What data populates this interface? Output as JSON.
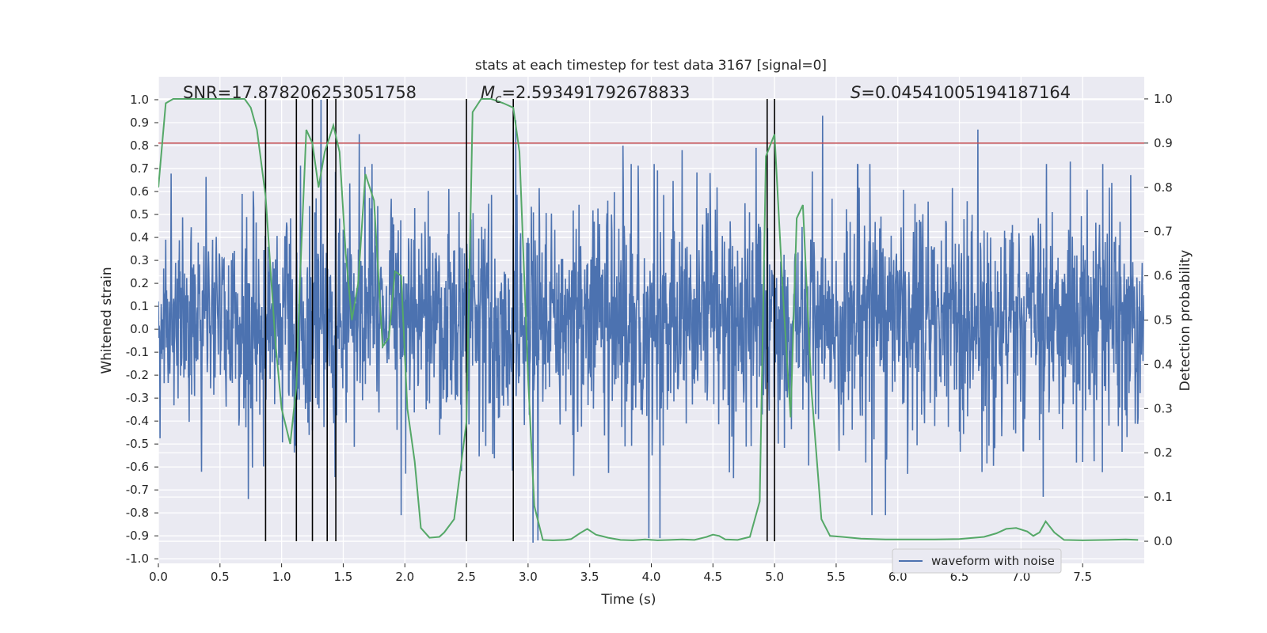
{
  "chart_data": {
    "type": "line",
    "title": "stats at each timestep for test data 3167 [signal=0]",
    "xlabel": "Time (s)",
    "ylabel": "Whitened strain",
    "ylabel_right": "Detection probability",
    "xlim": [
      0.0,
      8.0
    ],
    "ylim": [
      -1.02,
      1.1
    ],
    "ylim_right": [
      -0.05,
      1.05
    ],
    "x_ticks": [
      "0.0",
      "0.5",
      "1.0",
      "1.5",
      "2.0",
      "2.5",
      "3.0",
      "3.5",
      "4.0",
      "4.5",
      "5.0",
      "5.5",
      "6.0",
      "6.5",
      "7.0",
      "7.5"
    ],
    "y_ticks": [
      "-1.0",
      "-0.9",
      "-0.8",
      "-0.7",
      "-0.6",
      "-0.5",
      "-0.4",
      "-0.3",
      "-0.2",
      "-0.1",
      "0.0",
      "0.1",
      "0.2",
      "0.3",
      "0.4",
      "0.5",
      "0.6",
      "0.7",
      "0.8",
      "0.9",
      "1.0"
    ],
    "y_ticks_right": [
      "0.0",
      "0.1",
      "0.2",
      "0.3",
      "0.4",
      "0.5",
      "0.6",
      "0.7",
      "0.8",
      "0.9",
      "1.0"
    ],
    "grid": true,
    "legend": {
      "position": "lower-right",
      "entries": [
        "waveform with noise"
      ]
    },
    "annotations": {
      "snr": "SNR=17.878206253051758",
      "mc_symbol": "M",
      "mc_subscript": "c",
      "mc_value": "=2.593491792678833",
      "s_symbol": "S",
      "s_value": "=0.04541005194187164"
    },
    "series": [
      {
        "name": "waveform with noise",
        "color": "#4c72b0",
        "kind": "noisy-strain",
        "typical_range": [
          -0.35,
          0.45
        ],
        "peaks": [
          {
            "x": 0.73,
            "y": -0.74
          },
          {
            "x": 1.32,
            "y": 1.0
          },
          {
            "x": 1.63,
            "y": 0.85
          },
          {
            "x": 1.97,
            "y": -0.81
          },
          {
            "x": 2.9,
            "y": 0.91
          },
          {
            "x": 3.04,
            "y": -0.93
          },
          {
            "x": 3.08,
            "y": -0.92
          },
          {
            "x": 3.77,
            "y": 0.8
          },
          {
            "x": 3.98,
            "y": -0.91
          },
          {
            "x": 4.07,
            "y": -0.91
          },
          {
            "x": 4.25,
            "y": 0.78
          },
          {
            "x": 4.85,
            "y": 0.79
          },
          {
            "x": 5.39,
            "y": 0.93
          },
          {
            "x": 5.79,
            "y": -0.81
          },
          {
            "x": 5.9,
            "y": -0.81
          },
          {
            "x": 6.65,
            "y": 0.87
          },
          {
            "x": 7.18,
            "y": -0.73
          },
          {
            "x": 7.4,
            "y": 0.73
          }
        ]
      },
      {
        "name": "detection probability",
        "color": "#55a868",
        "axis": "right",
        "x": [
          0.0,
          0.06,
          0.12,
          0.25,
          0.4,
          0.55,
          0.7,
          0.75,
          0.8,
          0.87,
          0.95,
          1.0,
          1.07,
          1.12,
          1.15,
          1.2,
          1.25,
          1.3,
          1.35,
          1.42,
          1.47,
          1.52,
          1.57,
          1.62,
          1.68,
          1.75,
          1.82,
          1.87,
          1.92,
          1.97,
          2.02,
          2.08,
          2.13,
          2.2,
          2.28,
          2.32,
          2.4,
          2.5,
          2.55,
          2.62,
          2.7,
          2.8,
          2.88,
          2.93,
          3.0,
          3.05,
          3.12,
          3.2,
          3.3,
          3.35,
          3.42,
          3.48,
          3.55,
          3.65,
          3.75,
          3.85,
          3.95,
          4.05,
          4.15,
          4.25,
          4.35,
          4.45,
          4.5,
          4.55,
          4.6,
          4.7,
          4.8,
          4.88,
          4.93,
          5.0,
          5.07,
          5.13,
          5.18,
          5.23,
          5.3,
          5.38,
          5.45,
          5.55,
          5.7,
          5.9,
          6.1,
          6.3,
          6.5,
          6.7,
          6.8,
          6.88,
          6.96,
          7.05,
          7.1,
          7.15,
          7.2,
          7.27,
          7.35,
          7.5,
          7.7,
          7.85,
          7.95
        ],
        "values": [
          0.8,
          0.99,
          1.0,
          1.0,
          1.0,
          1.0,
          1.0,
          0.98,
          0.93,
          0.78,
          0.45,
          0.3,
          0.22,
          0.35,
          0.6,
          0.93,
          0.9,
          0.8,
          0.88,
          0.94,
          0.88,
          0.65,
          0.5,
          0.58,
          0.83,
          0.77,
          0.44,
          0.46,
          0.61,
          0.6,
          0.3,
          0.18,
          0.03,
          0.008,
          0.01,
          0.02,
          0.05,
          0.27,
          0.97,
          1.0,
          1.0,
          0.99,
          0.98,
          0.88,
          0.37,
          0.08,
          0.003,
          0.002,
          0.003,
          0.005,
          0.018,
          0.028,
          0.015,
          0.008,
          0.003,
          0.002,
          0.004,
          0.002,
          0.003,
          0.004,
          0.003,
          0.01,
          0.015,
          0.012,
          0.004,
          0.003,
          0.01,
          0.09,
          0.87,
          0.92,
          0.55,
          0.28,
          0.73,
          0.76,
          0.34,
          0.05,
          0.012,
          0.01,
          0.006,
          0.004,
          0.004,
          0.004,
          0.005,
          0.01,
          0.018,
          0.028,
          0.03,
          0.022,
          0.012,
          0.02,
          0.045,
          0.02,
          0.003,
          0.002,
          0.003,
          0.004,
          0.003
        ]
      },
      {
        "name": "threshold",
        "color": "#c44e52",
        "axis": "right",
        "values": [
          0.9
        ]
      }
    ],
    "vertical_markers": {
      "color": "#000000",
      "x": [
        0.87,
        1.12,
        1.25,
        1.37,
        1.44,
        2.5,
        2.88,
        4.94,
        5.0
      ]
    }
  }
}
